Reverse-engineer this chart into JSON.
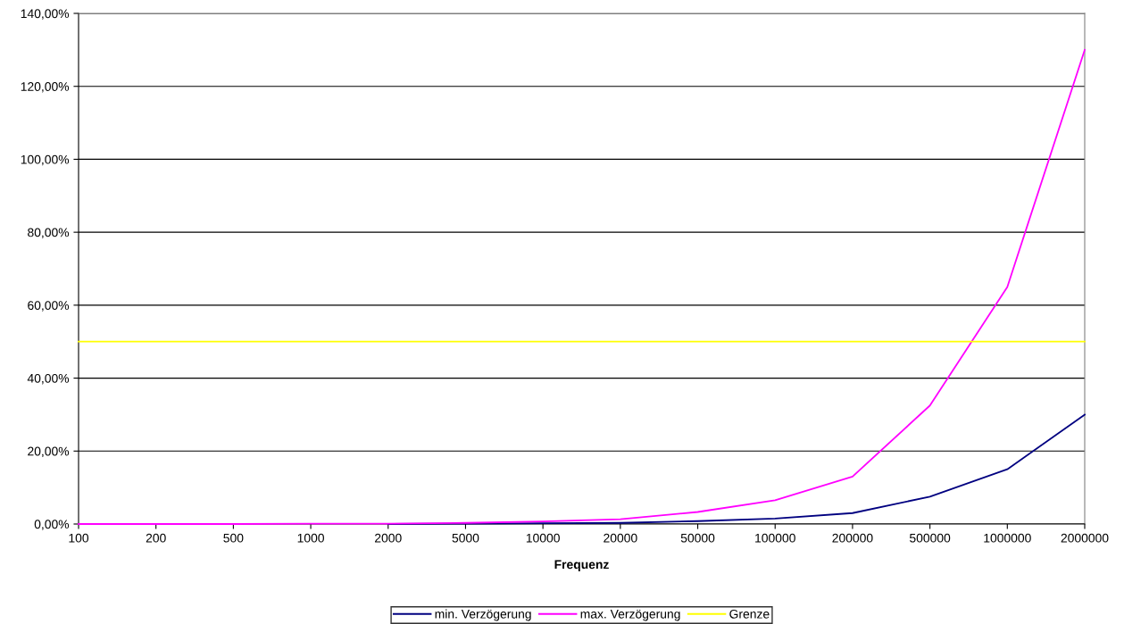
{
  "chart_data": {
    "type": "line",
    "xlabel": "Frequenz",
    "categories": [
      "100",
      "200",
      "500",
      "1000",
      "2000",
      "5000",
      "10000",
      "20000",
      "50000",
      "100000",
      "200000",
      "500000",
      "1000000",
      "2000000"
    ],
    "series": [
      {
        "name": "min. Verzögerung",
        "color": "#000080",
        "values": [
          null,
          null,
          null,
          null,
          0,
          0.1,
          0.2,
          0.3,
          0.8,
          1.5,
          3,
          7.5,
          15,
          30
        ]
      },
      {
        "name": "max. Verzögerung",
        "color": "#ff00ff",
        "values": [
          0,
          0,
          0,
          0.1,
          0.1,
          0.3,
          0.7,
          1.3,
          3.3,
          6.5,
          13,
          32.5,
          65,
          130
        ]
      },
      {
        "name": "Grenze",
        "color": "#ffff00",
        "values": [
          50,
          50,
          50,
          50,
          50,
          50,
          50,
          50,
          50,
          50,
          50,
          50,
          50,
          50
        ]
      }
    ],
    "ylim": [
      0,
      140
    ],
    "yticks": [
      {
        "value": 0,
        "label": "0,00%"
      },
      {
        "value": 20,
        "label": "20,00%"
      },
      {
        "value": 40,
        "label": "40,00%"
      },
      {
        "value": 60,
        "label": "60,00%"
      },
      {
        "value": 80,
        "label": "80,00%"
      },
      {
        "value": 100,
        "label": "100,00%"
      },
      {
        "value": 120,
        "label": "120,00%"
      },
      {
        "value": 140,
        "label": "140,00%"
      }
    ],
    "grid": "y",
    "legend": "bottom",
    "marker": "none",
    "line_style": "solid"
  }
}
